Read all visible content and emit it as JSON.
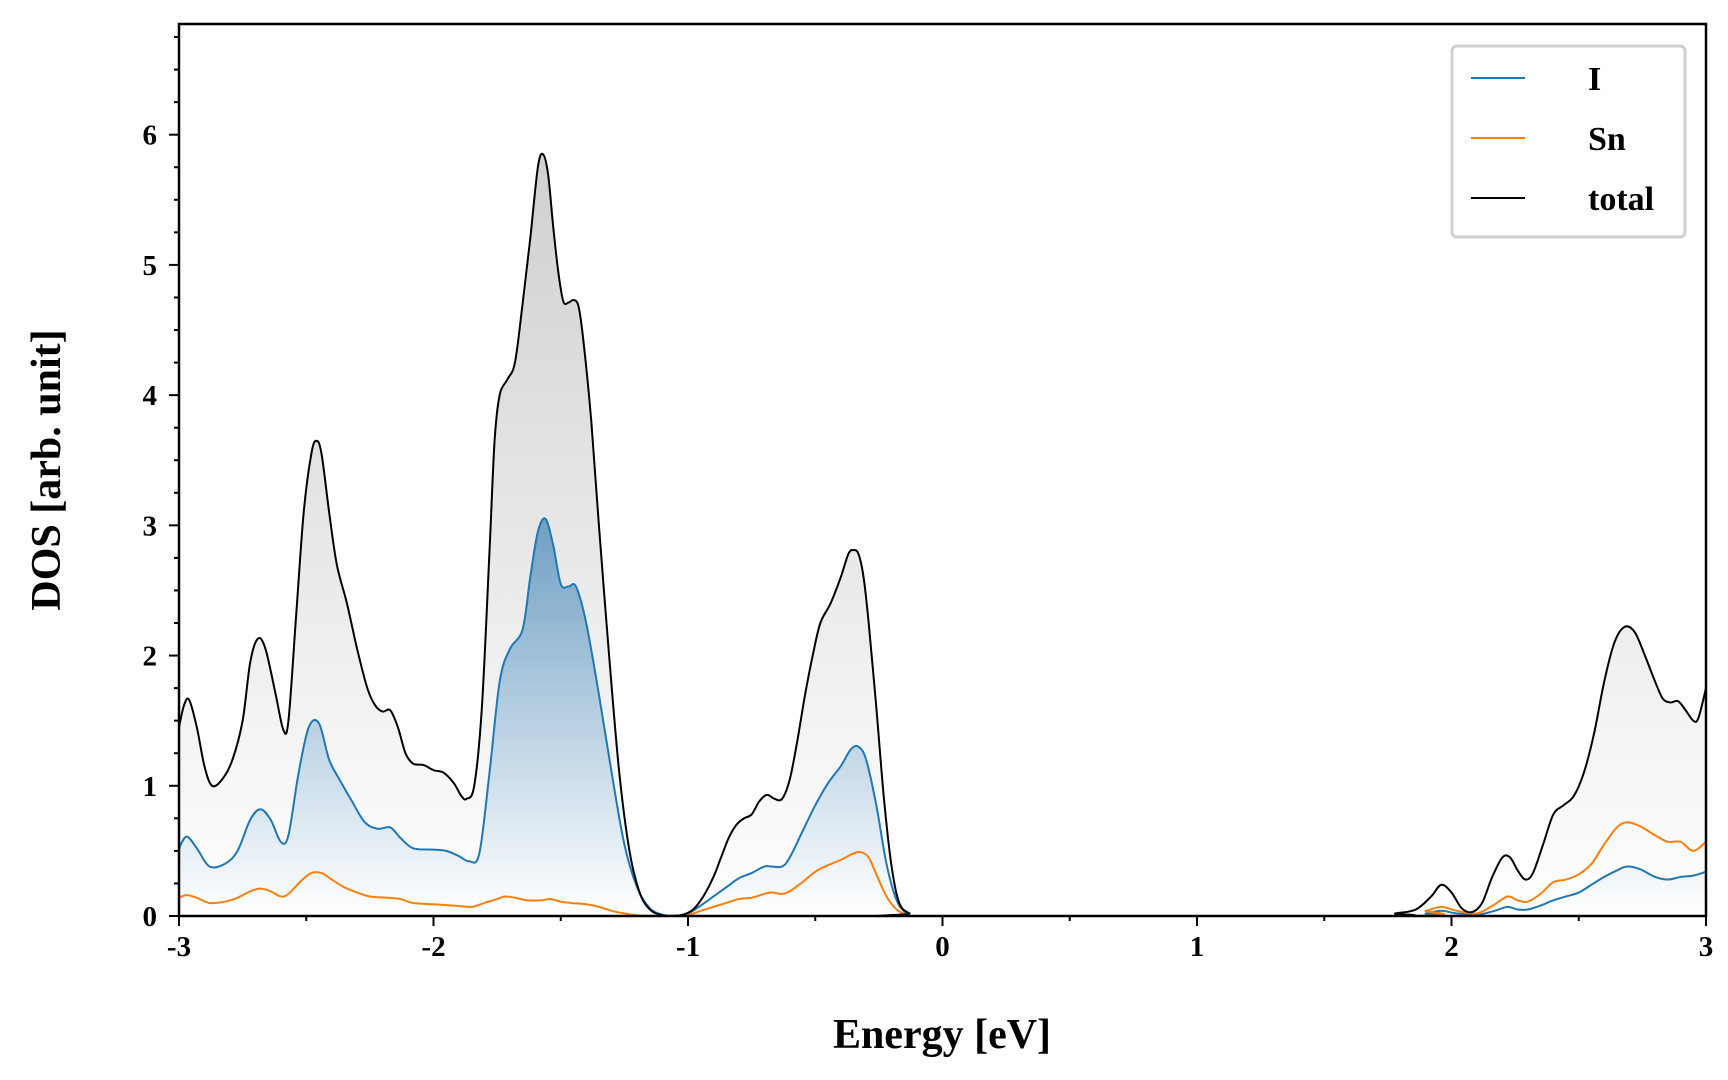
{
  "chart_data": {
    "type": "line",
    "xlabel": "Energy [eV]",
    "ylabel": "DOS [arb. unit]",
    "xlim": [
      -3,
      3
    ],
    "ylim": [
      0,
      6.85
    ],
    "x_ticks": [
      -3,
      -2,
      -1,
      0,
      1,
      2,
      3
    ],
    "y_ticks": [
      0,
      1,
      2,
      3,
      4,
      5,
      6
    ],
    "grid": false,
    "legend_position": "top-right",
    "series": [
      {
        "name": "I",
        "color": "#1f77b4",
        "points": [
          [
            -3.0,
            0.52
          ],
          [
            -2.97,
            0.61
          ],
          [
            -2.93,
            0.52
          ],
          [
            -2.88,
            0.38
          ],
          [
            -2.82,
            0.4
          ],
          [
            -2.77,
            0.5
          ],
          [
            -2.72,
            0.74
          ],
          [
            -2.68,
            0.82
          ],
          [
            -2.64,
            0.74
          ],
          [
            -2.6,
            0.57
          ],
          [
            -2.57,
            0.62
          ],
          [
            -2.53,
            1.1
          ],
          [
            -2.49,
            1.45
          ],
          [
            -2.45,
            1.48
          ],
          [
            -2.41,
            1.2
          ],
          [
            -2.37,
            1.05
          ],
          [
            -2.32,
            0.88
          ],
          [
            -2.27,
            0.72
          ],
          [
            -2.22,
            0.67
          ],
          [
            -2.17,
            0.68
          ],
          [
            -2.13,
            0.6
          ],
          [
            -2.08,
            0.52
          ],
          [
            -2.0,
            0.51
          ],
          [
            -1.95,
            0.5
          ],
          [
            -1.9,
            0.46
          ],
          [
            -1.86,
            0.42
          ],
          [
            -1.82,
            0.48
          ],
          [
            -1.78,
            1.1
          ],
          [
            -1.74,
            1.8
          ],
          [
            -1.7,
            2.05
          ],
          [
            -1.65,
            2.2
          ],
          [
            -1.62,
            2.6
          ],
          [
            -1.59,
            2.95
          ],
          [
            -1.56,
            3.05
          ],
          [
            -1.53,
            2.85
          ],
          [
            -1.5,
            2.55
          ],
          [
            -1.47,
            2.53
          ],
          [
            -1.44,
            2.53
          ],
          [
            -1.4,
            2.25
          ],
          [
            -1.35,
            1.7
          ],
          [
            -1.3,
            1.1
          ],
          [
            -1.25,
            0.55
          ],
          [
            -1.2,
            0.22
          ],
          [
            -1.15,
            0.06
          ],
          [
            -1.1,
            0.01
          ],
          [
            -1.05,
            0.0
          ],
          [
            -1.0,
            0.02
          ],
          [
            -0.95,
            0.08
          ],
          [
            -0.9,
            0.15
          ],
          [
            -0.85,
            0.22
          ],
          [
            -0.8,
            0.29
          ],
          [
            -0.75,
            0.33
          ],
          [
            -0.7,
            0.38
          ],
          [
            -0.67,
            0.38
          ],
          [
            -0.63,
            0.38
          ],
          [
            -0.6,
            0.45
          ],
          [
            -0.55,
            0.65
          ],
          [
            -0.5,
            0.85
          ],
          [
            -0.45,
            1.02
          ],
          [
            -0.4,
            1.15
          ],
          [
            -0.36,
            1.28
          ],
          [
            -0.33,
            1.3
          ],
          [
            -0.3,
            1.2
          ],
          [
            -0.26,
            0.85
          ],
          [
            -0.22,
            0.4
          ],
          [
            -0.18,
            0.12
          ],
          [
            -0.14,
            0.02
          ],
          [
            -0.1,
            0.0
          ],
          [
            1.8,
            0.0
          ],
          [
            1.9,
            0.02
          ],
          [
            1.96,
            0.04
          ],
          [
            2.02,
            0.02
          ],
          [
            2.1,
            0.01
          ],
          [
            2.17,
            0.04
          ],
          [
            2.22,
            0.07
          ],
          [
            2.26,
            0.05
          ],
          [
            2.3,
            0.05
          ],
          [
            2.35,
            0.08
          ],
          [
            2.4,
            0.12
          ],
          [
            2.45,
            0.15
          ],
          [
            2.5,
            0.18
          ],
          [
            2.55,
            0.24
          ],
          [
            2.6,
            0.3
          ],
          [
            2.65,
            0.35
          ],
          [
            2.69,
            0.38
          ],
          [
            2.74,
            0.36
          ],
          [
            2.8,
            0.3
          ],
          [
            2.85,
            0.28
          ],
          [
            2.9,
            0.3
          ],
          [
            2.95,
            0.31
          ],
          [
            3.0,
            0.34
          ]
        ]
      },
      {
        "name": "Sn",
        "color": "#ff7f0e",
        "points": [
          [
            -3.0,
            0.14
          ],
          [
            -2.97,
            0.16
          ],
          [
            -2.93,
            0.14
          ],
          [
            -2.88,
            0.1
          ],
          [
            -2.82,
            0.11
          ],
          [
            -2.77,
            0.14
          ],
          [
            -2.72,
            0.19
          ],
          [
            -2.68,
            0.21
          ],
          [
            -2.64,
            0.19
          ],
          [
            -2.6,
            0.15
          ],
          [
            -2.57,
            0.17
          ],
          [
            -2.52,
            0.27
          ],
          [
            -2.48,
            0.33
          ],
          [
            -2.44,
            0.33
          ],
          [
            -2.4,
            0.28
          ],
          [
            -2.35,
            0.22
          ],
          [
            -2.3,
            0.18
          ],
          [
            -2.25,
            0.15
          ],
          [
            -2.18,
            0.14
          ],
          [
            -2.13,
            0.13
          ],
          [
            -2.08,
            0.1
          ],
          [
            -2.0,
            0.09
          ],
          [
            -1.92,
            0.08
          ],
          [
            -1.85,
            0.07
          ],
          [
            -1.8,
            0.1
          ],
          [
            -1.75,
            0.13
          ],
          [
            -1.72,
            0.15
          ],
          [
            -1.68,
            0.14
          ],
          [
            -1.63,
            0.12
          ],
          [
            -1.58,
            0.12
          ],
          [
            -1.54,
            0.13
          ],
          [
            -1.5,
            0.11
          ],
          [
            -1.46,
            0.1
          ],
          [
            -1.4,
            0.09
          ],
          [
            -1.35,
            0.07
          ],
          [
            -1.3,
            0.04
          ],
          [
            -1.25,
            0.02
          ],
          [
            -1.2,
            0.005
          ],
          [
            -1.1,
            0.0
          ],
          [
            -1.0,
            0.01
          ],
          [
            -0.95,
            0.04
          ],
          [
            -0.9,
            0.07
          ],
          [
            -0.85,
            0.1
          ],
          [
            -0.8,
            0.13
          ],
          [
            -0.75,
            0.14
          ],
          [
            -0.7,
            0.17
          ],
          [
            -0.67,
            0.18
          ],
          [
            -0.63,
            0.17
          ],
          [
            -0.6,
            0.19
          ],
          [
            -0.55,
            0.26
          ],
          [
            -0.5,
            0.34
          ],
          [
            -0.45,
            0.39
          ],
          [
            -0.4,
            0.43
          ],
          [
            -0.35,
            0.48
          ],
          [
            -0.32,
            0.49
          ],
          [
            -0.29,
            0.45
          ],
          [
            -0.26,
            0.32
          ],
          [
            -0.22,
            0.15
          ],
          [
            -0.18,
            0.05
          ],
          [
            -0.14,
            0.01
          ],
          [
            -0.1,
            0.0
          ],
          [
            1.8,
            0.0
          ],
          [
            1.9,
            0.04
          ],
          [
            1.96,
            0.07
          ],
          [
            2.02,
            0.04
          ],
          [
            2.1,
            0.02
          ],
          [
            2.17,
            0.09
          ],
          [
            2.22,
            0.15
          ],
          [
            2.26,
            0.12
          ],
          [
            2.3,
            0.11
          ],
          [
            2.35,
            0.17
          ],
          [
            2.4,
            0.26
          ],
          [
            2.45,
            0.28
          ],
          [
            2.5,
            0.32
          ],
          [
            2.55,
            0.4
          ],
          [
            2.6,
            0.55
          ],
          [
            2.65,
            0.68
          ],
          [
            2.69,
            0.72
          ],
          [
            2.74,
            0.69
          ],
          [
            2.8,
            0.62
          ],
          [
            2.85,
            0.57
          ],
          [
            2.9,
            0.57
          ],
          [
            2.95,
            0.5
          ],
          [
            3.0,
            0.57
          ]
        ]
      },
      {
        "name": "total",
        "color": "#000000",
        "points": [
          [
            -3.0,
            1.45
          ],
          [
            -2.98,
            1.62
          ],
          [
            -2.96,
            1.66
          ],
          [
            -2.93,
            1.45
          ],
          [
            -2.9,
            1.15
          ],
          [
            -2.87,
            1.0
          ],
          [
            -2.83,
            1.05
          ],
          [
            -2.79,
            1.2
          ],
          [
            -2.75,
            1.5
          ],
          [
            -2.72,
            1.95
          ],
          [
            -2.69,
            2.13
          ],
          [
            -2.66,
            2.05
          ],
          [
            -2.62,
            1.7
          ],
          [
            -2.59,
            1.43
          ],
          [
            -2.57,
            1.5
          ],
          [
            -2.54,
            2.3
          ],
          [
            -2.51,
            3.1
          ],
          [
            -2.48,
            3.55
          ],
          [
            -2.46,
            3.65
          ],
          [
            -2.44,
            3.55
          ],
          [
            -2.41,
            3.1
          ],
          [
            -2.38,
            2.7
          ],
          [
            -2.34,
            2.4
          ],
          [
            -2.3,
            2.05
          ],
          [
            -2.26,
            1.75
          ],
          [
            -2.23,
            1.62
          ],
          [
            -2.2,
            1.57
          ],
          [
            -2.17,
            1.58
          ],
          [
            -2.14,
            1.45
          ],
          [
            -2.11,
            1.25
          ],
          [
            -2.08,
            1.17
          ],
          [
            -2.04,
            1.16
          ],
          [
            -2.0,
            1.12
          ],
          [
            -1.96,
            1.1
          ],
          [
            -1.92,
            1.02
          ],
          [
            -1.89,
            0.92
          ],
          [
            -1.87,
            0.9
          ],
          [
            -1.84,
            1.0
          ],
          [
            -1.81,
            1.6
          ],
          [
            -1.78,
            2.8
          ],
          [
            -1.76,
            3.65
          ],
          [
            -1.74,
            4.0
          ],
          [
            -1.71,
            4.12
          ],
          [
            -1.68,
            4.25
          ],
          [
            -1.65,
            4.7
          ],
          [
            -1.62,
            5.2
          ],
          [
            -1.59,
            5.75
          ],
          [
            -1.57,
            5.85
          ],
          [
            -1.55,
            5.7
          ],
          [
            -1.53,
            5.3
          ],
          [
            -1.51,
            4.95
          ],
          [
            -1.49,
            4.72
          ],
          [
            -1.47,
            4.71
          ],
          [
            -1.45,
            4.73
          ],
          [
            -1.43,
            4.68
          ],
          [
            -1.41,
            4.4
          ],
          [
            -1.38,
            3.8
          ],
          [
            -1.35,
            3.0
          ],
          [
            -1.31,
            2.0
          ],
          [
            -1.27,
            1.1
          ],
          [
            -1.23,
            0.5
          ],
          [
            -1.19,
            0.18
          ],
          [
            -1.15,
            0.05
          ],
          [
            -1.11,
            0.01
          ],
          [
            -1.07,
            0.0
          ],
          [
            -1.02,
            0.01
          ],
          [
            -0.98,
            0.05
          ],
          [
            -0.94,
            0.15
          ],
          [
            -0.9,
            0.3
          ],
          [
            -0.87,
            0.45
          ],
          [
            -0.84,
            0.6
          ],
          [
            -0.81,
            0.7
          ],
          [
            -0.78,
            0.75
          ],
          [
            -0.75,
            0.78
          ],
          [
            -0.72,
            0.88
          ],
          [
            -0.69,
            0.93
          ],
          [
            -0.66,
            0.9
          ],
          [
            -0.63,
            0.9
          ],
          [
            -0.6,
            1.05
          ],
          [
            -0.57,
            1.35
          ],
          [
            -0.54,
            1.7
          ],
          [
            -0.51,
            2.0
          ],
          [
            -0.48,
            2.25
          ],
          [
            -0.44,
            2.4
          ],
          [
            -0.4,
            2.6
          ],
          [
            -0.37,
            2.78
          ],
          [
            -0.35,
            2.81
          ],
          [
            -0.33,
            2.78
          ],
          [
            -0.31,
            2.6
          ],
          [
            -0.29,
            2.25
          ],
          [
            -0.26,
            1.6
          ],
          [
            -0.23,
            0.9
          ],
          [
            -0.2,
            0.38
          ],
          [
            -0.17,
            0.1
          ],
          [
            -0.13,
            0.02
          ],
          [
            -0.09,
            0.0
          ],
          [
            1.7,
            0.0
          ],
          [
            1.78,
            0.02
          ],
          [
            1.86,
            0.05
          ],
          [
            1.92,
            0.15
          ],
          [
            1.96,
            0.24
          ],
          [
            2.0,
            0.18
          ],
          [
            2.04,
            0.06
          ],
          [
            2.08,
            0.03
          ],
          [
            2.12,
            0.1
          ],
          [
            2.16,
            0.3
          ],
          [
            2.2,
            0.45
          ],
          [
            2.23,
            0.45
          ],
          [
            2.26,
            0.35
          ],
          [
            2.29,
            0.28
          ],
          [
            2.32,
            0.33
          ],
          [
            2.36,
            0.55
          ],
          [
            2.4,
            0.78
          ],
          [
            2.44,
            0.85
          ],
          [
            2.48,
            0.92
          ],
          [
            2.52,
            1.1
          ],
          [
            2.56,
            1.4
          ],
          [
            2.6,
            1.8
          ],
          [
            2.64,
            2.1
          ],
          [
            2.68,
            2.22
          ],
          [
            2.72,
            2.18
          ],
          [
            2.76,
            2.0
          ],
          [
            2.8,
            1.8
          ],
          [
            2.83,
            1.67
          ],
          [
            2.86,
            1.64
          ],
          [
            2.89,
            1.65
          ],
          [
            2.92,
            1.58
          ],
          [
            2.95,
            1.5
          ],
          [
            2.97,
            1.52
          ],
          [
            3.0,
            1.75
          ]
        ]
      }
    ]
  }
}
